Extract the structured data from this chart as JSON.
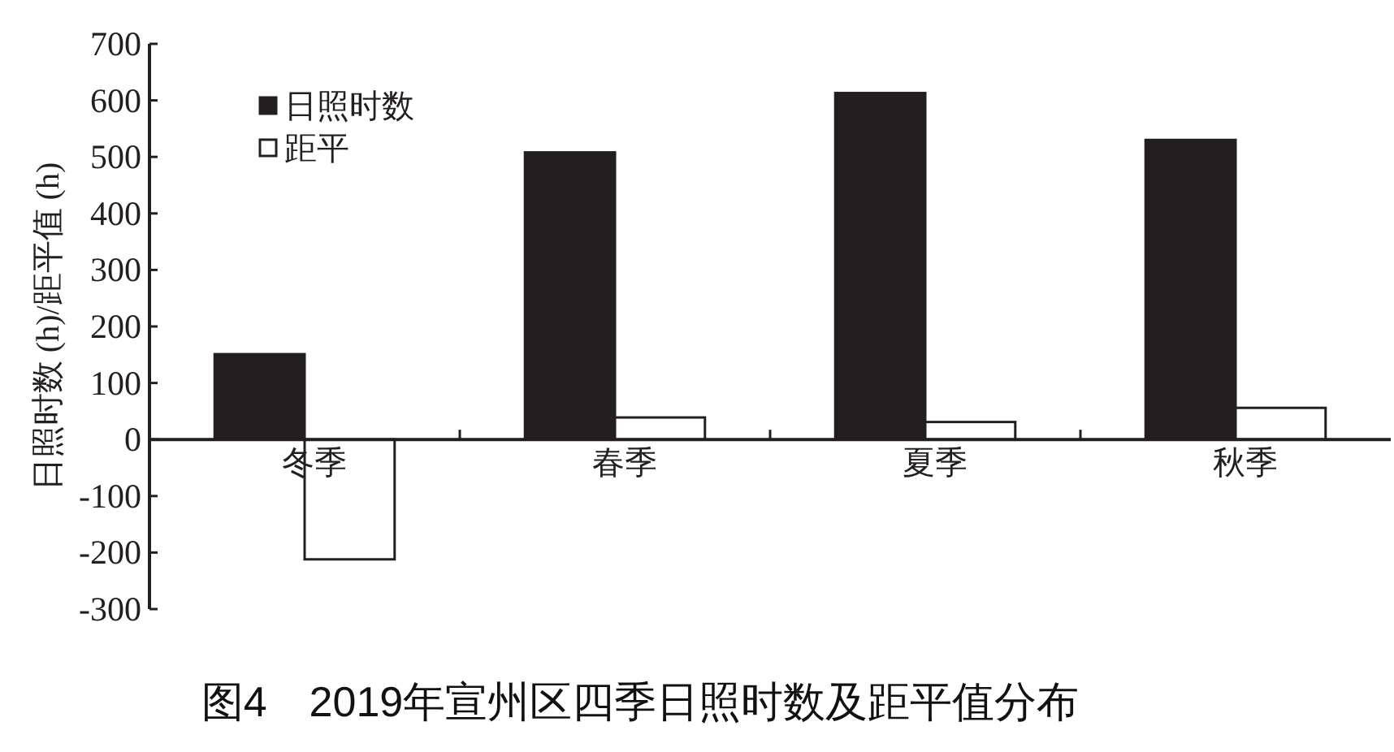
{
  "chart_data": {
    "type": "bar",
    "title": "图4　2019年宣州区四季日照时数及距平值分布",
    "ylabel": "日照时数 (h)/距平值 (h)",
    "categories": [
      "冬季",
      "春季",
      "夏季",
      "秋季"
    ],
    "series": [
      {
        "name": "日照时数",
        "color": "#231f20",
        "values": [
          151,
          508,
          613,
          530
        ]
      },
      {
        "name": "距平",
        "color": "#ffffff",
        "values": [
          -212,
          39,
          31,
          56
        ]
      }
    ],
    "ylim": [
      -300,
      700
    ],
    "yticks": [
      -300,
      -200,
      -100,
      0,
      100,
      200,
      300,
      400,
      500,
      600,
      700
    ],
    "grid": false,
    "legend": "top left"
  }
}
